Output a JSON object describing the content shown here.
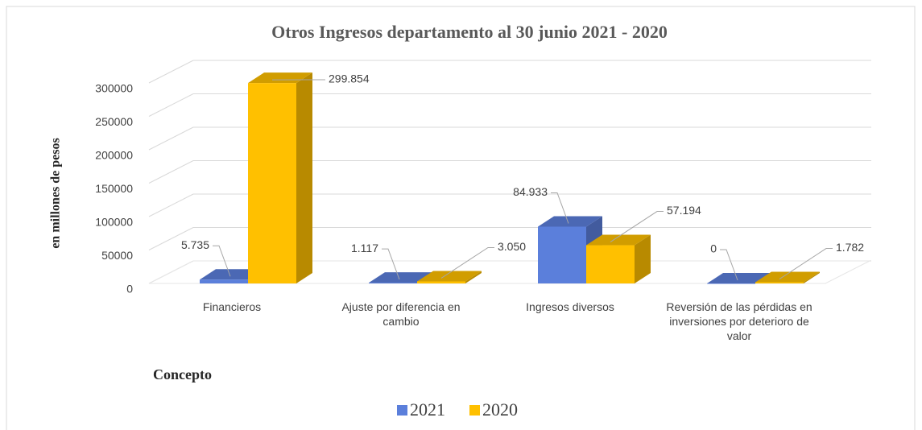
{
  "chart_data": {
    "type": "bar3d",
    "title": "Otros Ingresos departamento al 30 junio 2021 - 2020",
    "y_label": "en millones de pesos",
    "x_label": "Concepto",
    "categories": [
      "Financieros",
      "Ajuste por diferencia en cambio",
      "Ingresos diversos",
      "Reversión de las pérdidas en inversiones por deterioro de valor"
    ],
    "series": [
      {
        "name": "2021",
        "color": "#5b7fdb",
        "values": [
          5735,
          1117,
          84933,
          0
        ],
        "value_labels": [
          "5.735",
          "1.117",
          "84.933",
          "0"
        ]
      },
      {
        "name": "2020",
        "color": "#ffc000",
        "values": [
          299854,
          3050,
          57194,
          1782
        ],
        "value_labels": [
          "299.854",
          "3.050",
          "57.194",
          "1.782"
        ]
      }
    ],
    "ylim": [
      0,
      300000
    ],
    "yticks": [
      0,
      50000,
      100000,
      150000,
      200000,
      250000,
      300000
    ],
    "grid": true,
    "legend": "bottom"
  }
}
